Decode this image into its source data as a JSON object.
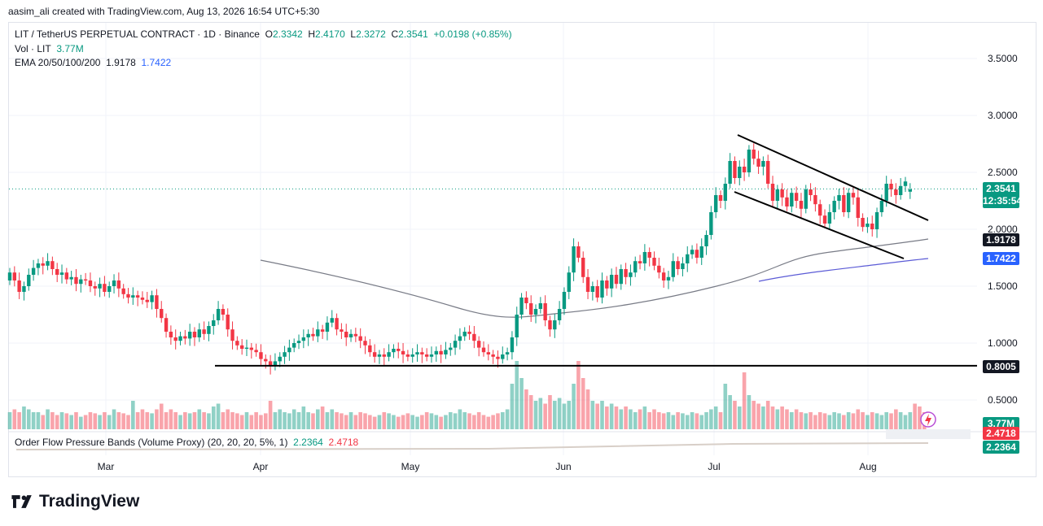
{
  "header": {
    "text": "aasim_ali created with TradingView.com, Aug 13, 2026 16:54 UTC+5:30"
  },
  "legend": {
    "symbol": "LIT / TetherUS PERPETUAL CONTRACT · 1D · Binance",
    "o_label": "O",
    "o": "2.3342",
    "h_label": "H",
    "h": "2.4170",
    "l_label": "L",
    "l": "2.3272",
    "c_label": "C",
    "c": "2.3541",
    "change": "+0.0198 (+0.85%)",
    "vol_label": "Vol · LIT",
    "vol": "3.77M",
    "ema_label": "EMA 20/50/100/200",
    "ema1": "1.9178",
    "ema2": "1.7422",
    "indicator_label": "Order Flow Pressure Bands (Volume Proxy) (20, 20, 20, 5%, 1)",
    "ind1": "2.2364",
    "ind2": "2.4718"
  },
  "price_labels": {
    "last": "2.3541",
    "countdown": "12:35:54",
    "ema1": "1.9178",
    "ema2": "1.7422",
    "support": "0.8005",
    "vol": "3.77M",
    "ind_upper": "2.4718",
    "ind_lower": "2.2364"
  },
  "colors": {
    "up": "#089981",
    "down": "#f23645",
    "ema1": "#787b86",
    "ema2": "#5b5bd6",
    "label_dark": "#131722",
    "label_blue": "#2962ff"
  },
  "footer": {
    "brand": "TradingView",
    "logo_icon": "tradingview-logo-icon"
  },
  "chart_data": {
    "type": "candlestick",
    "x_labels": [
      "Mar",
      "Apr",
      "May",
      "Jun",
      "Jul",
      "Aug"
    ],
    "y_ticks": [
      "3.5000",
      "3.0000",
      "2.5000",
      "2.0000",
      "1.5000",
      "1.0000",
      "0.5000"
    ],
    "y_range": [
      0.3,
      3.7
    ],
    "support_level": 0.8005,
    "last_price": 2.3541,
    "closes": [
      1.62,
      1.55,
      1.45,
      1.5,
      1.6,
      1.66,
      1.7,
      1.68,
      1.72,
      1.65,
      1.6,
      1.62,
      1.56,
      1.58,
      1.52,
      1.56,
      1.55,
      1.5,
      1.48,
      1.52,
      1.45,
      1.5,
      1.55,
      1.48,
      1.43,
      1.4,
      1.42,
      1.4,
      1.38,
      1.36,
      1.42,
      1.3,
      1.22,
      1.1,
      1.05,
      1.02,
      1.06,
      1.04,
      1.1,
      1.05,
      1.12,
      1.08,
      1.15,
      1.2,
      1.3,
      1.25,
      1.12,
      1.02,
      0.98,
      0.95,
      0.96,
      0.94,
      0.92,
      0.86,
      0.84,
      0.8,
      0.84,
      0.88,
      0.92,
      0.96,
      1.0,
      1.02,
      1.05,
      1.08,
      1.06,
      1.12,
      1.1,
      1.18,
      1.22,
      1.12,
      1.1,
      1.05,
      1.08,
      1.06,
      1.02,
      0.98,
      0.92,
      0.88,
      0.9,
      0.88,
      0.92,
      0.95,
      0.93,
      0.9,
      0.88,
      0.9,
      0.92,
      0.9,
      0.88,
      0.9,
      0.93,
      0.9,
      0.94,
      0.96,
      1.02,
      1.06,
      1.1,
      1.08,
      1.02,
      0.96,
      0.92,
      0.9,
      0.88,
      0.86,
      0.9,
      0.92,
      1.05,
      1.25,
      1.4,
      1.35,
      1.25,
      1.3,
      1.35,
      1.2,
      1.12,
      1.2,
      1.3,
      1.45,
      1.62,
      1.85,
      1.75,
      1.58,
      1.45,
      1.5,
      1.4,
      1.55,
      1.48,
      1.6,
      1.52,
      1.65,
      1.58,
      1.62,
      1.72,
      1.7,
      1.8,
      1.75,
      1.68,
      1.62,
      1.55,
      1.58,
      1.72,
      1.65,
      1.7,
      1.78,
      1.82,
      1.75,
      1.85,
      1.95,
      2.15,
      2.3,
      2.25,
      2.4,
      2.6,
      2.45,
      2.55,
      2.5,
      2.7,
      2.62,
      2.55,
      2.6,
      2.4,
      2.25,
      2.35,
      2.28,
      2.2,
      2.32,
      2.25,
      2.18,
      2.35,
      2.3,
      2.22,
      2.12,
      2.05,
      2.15,
      2.25,
      2.3,
      2.15,
      2.32,
      2.28,
      2.1,
      2.02,
      2.05,
      2.0,
      2.15,
      2.25,
      2.4,
      2.35,
      2.3,
      2.38,
      2.42,
      2.35
    ],
    "opens": [
      1.55,
      1.62,
      1.55,
      1.45,
      1.5,
      1.6,
      1.66,
      1.7,
      1.68,
      1.72,
      1.65,
      1.6,
      1.62,
      1.56,
      1.58,
      1.52,
      1.56,
      1.55,
      1.5,
      1.48,
      1.52,
      1.45,
      1.5,
      1.55,
      1.48,
      1.43,
      1.4,
      1.42,
      1.4,
      1.38,
      1.36,
      1.42,
      1.3,
      1.22,
      1.1,
      1.05,
      1.02,
      1.06,
      1.04,
      1.1,
      1.05,
      1.12,
      1.08,
      1.15,
      1.2,
      1.3,
      1.25,
      1.12,
      1.02,
      0.98,
      0.95,
      0.96,
      0.94,
      0.92,
      0.86,
      0.84,
      0.8,
      0.84,
      0.88,
      0.92,
      0.96,
      1.0,
      1.02,
      1.05,
      1.08,
      1.06,
      1.12,
      1.1,
      1.18,
      1.22,
      1.12,
      1.1,
      1.05,
      1.08,
      1.06,
      1.02,
      0.98,
      0.92,
      0.88,
      0.9,
      0.88,
      0.92,
      0.95,
      0.93,
      0.9,
      0.88,
      0.9,
      0.92,
      0.9,
      0.88,
      0.9,
      0.93,
      0.9,
      0.94,
      0.96,
      1.02,
      1.06,
      1.1,
      1.08,
      1.02,
      0.96,
      0.92,
      0.9,
      0.88,
      0.86,
      0.9,
      0.92,
      1.05,
      1.25,
      1.4,
      1.35,
      1.25,
      1.3,
      1.35,
      1.2,
      1.12,
      1.2,
      1.3,
      1.45,
      1.62,
      1.85,
      1.75,
      1.58,
      1.45,
      1.5,
      1.4,
      1.55,
      1.48,
      1.6,
      1.52,
      1.65,
      1.58,
      1.62,
      1.72,
      1.7,
      1.8,
      1.75,
      1.68,
      1.62,
      1.55,
      1.58,
      1.72,
      1.65,
      1.7,
      1.78,
      1.82,
      1.75,
      1.85,
      1.95,
      2.15,
      2.3,
      2.25,
      2.4,
      2.6,
      2.45,
      2.55,
      2.5,
      2.7,
      2.62,
      2.55,
      2.6,
      2.4,
      2.25,
      2.35,
      2.28,
      2.2,
      2.32,
      2.25,
      2.18,
      2.35,
      2.3,
      2.22,
      2.12,
      2.05,
      2.15,
      2.25,
      2.3,
      2.15,
      2.32,
      2.28,
      2.1,
      2.02,
      2.05,
      2.0,
      2.15,
      2.25,
      2.4,
      2.35,
      2.3,
      2.38,
      2.33
    ],
    "volume_relative": [
      0.3,
      0.35,
      0.3,
      0.4,
      0.35,
      0.3,
      0.3,
      0.25,
      0.35,
      0.3,
      0.25,
      0.3,
      0.28,
      0.25,
      0.3,
      0.22,
      0.25,
      0.3,
      0.28,
      0.25,
      0.3,
      0.25,
      0.35,
      0.3,
      0.28,
      0.25,
      0.5,
      0.3,
      0.35,
      0.3,
      0.28,
      0.35,
      0.45,
      0.3,
      0.35,
      0.3,
      0.25,
      0.3,
      0.28,
      0.3,
      0.35,
      0.3,
      0.28,
      0.4,
      0.45,
      0.3,
      0.35,
      0.3,
      0.28,
      0.25,
      0.3,
      0.25,
      0.3,
      0.25,
      0.28,
      0.5,
      0.3,
      0.35,
      0.3,
      0.28,
      0.35,
      0.3,
      0.4,
      0.3,
      0.28,
      0.35,
      0.4,
      0.3,
      0.35,
      0.3,
      0.28,
      0.25,
      0.3,
      0.25,
      0.3,
      0.28,
      0.25,
      0.22,
      0.25,
      0.3,
      0.28,
      0.25,
      0.22,
      0.25,
      0.28,
      0.25,
      0.22,
      0.25,
      0.3,
      0.28,
      0.25,
      0.22,
      0.25,
      0.3,
      0.28,
      0.35,
      0.3,
      0.28,
      0.25,
      0.3,
      0.25,
      0.22,
      0.25,
      0.28,
      0.3,
      0.35,
      0.8,
      1.2,
      0.9,
      0.7,
      0.6,
      0.5,
      0.55,
      0.45,
      0.6,
      0.5,
      0.55,
      0.45,
      0.5,
      0.8,
      1.2,
      0.9,
      0.7,
      0.5,
      0.45,
      0.5,
      0.4,
      0.45,
      0.4,
      0.35,
      0.4,
      0.35,
      0.3,
      0.35,
      0.4,
      0.3,
      0.35,
      0.3,
      0.28,
      0.3,
      0.25,
      0.3,
      0.28,
      0.25,
      0.3,
      0.28,
      0.25,
      0.3,
      0.35,
      0.4,
      0.3,
      0.8,
      0.6,
      0.5,
      0.4,
      1.0,
      0.6,
      0.5,
      0.45,
      0.4,
      0.5,
      0.4,
      0.35,
      0.4,
      0.35,
      0.3,
      0.35,
      0.3,
      0.28,
      0.3,
      0.25,
      0.3,
      0.28,
      0.25,
      0.3,
      0.28,
      0.25,
      0.3,
      0.28,
      0.35,
      0.3,
      0.25,
      0.3,
      0.28,
      0.25,
      0.3,
      0.28,
      0.35,
      0.3,
      0.25,
      0.3,
      0.45,
      0.4,
      0.3
    ]
  }
}
